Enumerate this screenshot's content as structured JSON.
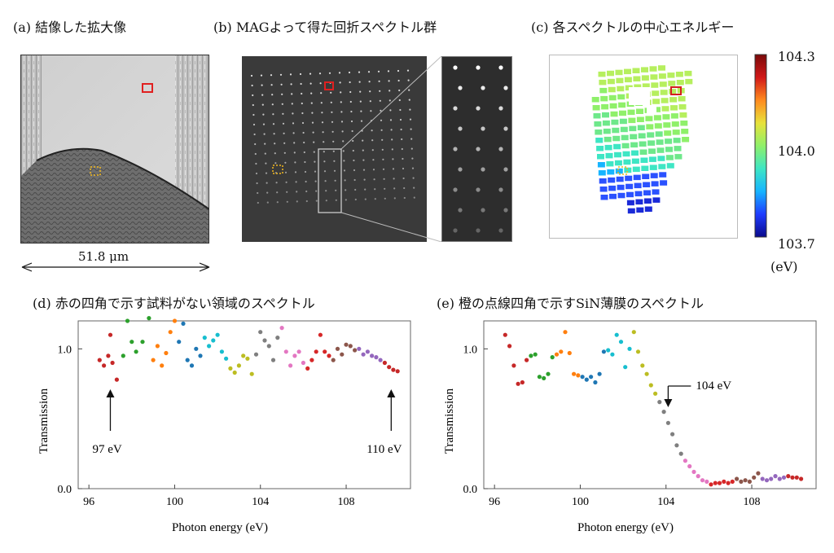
{
  "panels": {
    "a": {
      "label": "(a)  結像した拡大像",
      "scalebar": "51.8 μm"
    },
    "b": {
      "label": "(b)  MAGよって得た回折スペクトル群"
    },
    "c": {
      "label": "(c)  各スペクトルの中心エネルギー",
      "colorbar": {
        "max": "104.3",
        "mid": "104.0",
        "min": "103.7",
        "unit": "(eV)",
        "colors": [
          "#0a0a8c",
          "#1f3cff",
          "#16b4ff",
          "#3ee6c4",
          "#8ff06a",
          "#e8e23a",
          "#ff8a1e",
          "#d11818",
          "#7a0a0a"
        ]
      }
    },
    "d": {
      "label": "(d) 赤の四角で示す試料がない領域のスペクトル",
      "annotations": [
        "97 eV",
        "110 eV"
      ]
    },
    "e": {
      "label": "(e) 橙の点線四角で示すSiN薄膜のスペクトル",
      "annotations": [
        "104 eV"
      ]
    }
  },
  "chart_data": [
    {
      "type": "scatter",
      "title": "",
      "xlabel": "Photon energy (eV)",
      "ylabel": "Transmission",
      "xlim": [
        95.5,
        111
      ],
      "ylim": [
        0,
        1.2
      ],
      "xticks": [
        "96",
        "100",
        "104",
        "108"
      ],
      "yticks": [
        "0.0",
        "1.0"
      ],
      "x": [
        96.5,
        96.7,
        96.9,
        97.0,
        97.1,
        97.3,
        97.6,
        97.8,
        98.0,
        98.2,
        98.5,
        98.8,
        99.0,
        99.2,
        99.4,
        99.6,
        99.8,
        100.0,
        100.2,
        100.4,
        100.6,
        100.8,
        101.0,
        101.2,
        101.4,
        101.6,
        101.8,
        102.0,
        102.2,
        102.4,
        102.6,
        102.8,
        103.0,
        103.2,
        103.4,
        103.6,
        103.8,
        104.0,
        104.2,
        104.4,
        104.6,
        104.8,
        105.0,
        105.2,
        105.4,
        105.6,
        105.8,
        106.0,
        106.2,
        106.4,
        106.6,
        106.8,
        107.0,
        107.2,
        107.4,
        107.6,
        107.8,
        108.0,
        108.2,
        108.4,
        108.6,
        108.8,
        109.0,
        109.2,
        109.4,
        109.6,
        109.8,
        110.0,
        110.2,
        110.4
      ],
      "y": [
        0.92,
        0.88,
        0.95,
        1.1,
        0.9,
        0.78,
        0.95,
        1.2,
        1.05,
        0.98,
        1.05,
        1.22,
        0.92,
        1.02,
        0.88,
        0.97,
        1.12,
        1.2,
        1.05,
        1.18,
        0.92,
        0.88,
        1.0,
        0.95,
        1.08,
        1.02,
        1.06,
        1.1,
        0.98,
        0.93,
        0.86,
        0.83,
        0.88,
        0.95,
        0.93,
        0.82,
        0.96,
        1.12,
        1.06,
        1.02,
        0.92,
        1.08,
        1.15,
        0.98,
        0.88,
        0.95,
        0.98,
        0.9,
        0.86,
        0.92,
        0.98,
        1.1,
        0.98,
        0.95,
        0.92,
        1.0,
        0.96,
        1.03,
        1.02,
        0.99,
        1.0,
        0.96,
        0.98,
        0.95,
        0.94,
        0.92,
        0.9,
        0.87,
        0.85,
        0.84
      ]
    },
    {
      "type": "scatter",
      "title": "",
      "xlabel": "Photon energy (eV)",
      "ylabel": "Transmission",
      "xlim": [
        95.5,
        111
      ],
      "ylim": [
        0,
        1.2
      ],
      "xticks": [
        "96",
        "100",
        "104",
        "108"
      ],
      "yticks": [
        "0.0",
        "1.0"
      ],
      "x": [
        96.5,
        96.7,
        96.9,
        97.1,
        97.3,
        97.5,
        97.7,
        97.9,
        98.1,
        98.3,
        98.5,
        98.7,
        98.9,
        99.1,
        99.3,
        99.5,
        99.7,
        99.9,
        100.1,
        100.3,
        100.5,
        100.7,
        100.9,
        101.1,
        101.3,
        101.5,
        101.7,
        101.9,
        102.1,
        102.3,
        102.5,
        102.7,
        102.9,
        103.1,
        103.3,
        103.5,
        103.7,
        103.9,
        104.1,
        104.3,
        104.5,
        104.7,
        104.9,
        105.1,
        105.3,
        105.5,
        105.7,
        105.9,
        106.1,
        106.3,
        106.5,
        106.7,
        106.9,
        107.1,
        107.3,
        107.5,
        107.7,
        107.9,
        108.1,
        108.3,
        108.5,
        108.7,
        108.9,
        109.1,
        109.3,
        109.5,
        109.7,
        109.9,
        110.1,
        110.3
      ],
      "y": [
        1.1,
        1.02,
        0.88,
        0.75,
        0.76,
        0.92,
        0.95,
        0.96,
        0.8,
        0.79,
        0.82,
        0.94,
        0.96,
        0.98,
        1.12,
        0.97,
        0.82,
        0.81,
        0.8,
        0.78,
        0.8,
        0.76,
        0.82,
        0.98,
        0.99,
        0.96,
        1.1,
        1.05,
        0.87,
        1.0,
        1.12,
        0.98,
        0.88,
        0.82,
        0.74,
        0.68,
        0.62,
        0.55,
        0.47,
        0.39,
        0.31,
        0.25,
        0.2,
        0.16,
        0.12,
        0.09,
        0.06,
        0.05,
        0.03,
        0.04,
        0.04,
        0.05,
        0.04,
        0.05,
        0.07,
        0.05,
        0.06,
        0.05,
        0.08,
        0.11,
        0.07,
        0.06,
        0.07,
        0.09,
        0.07,
        0.08,
        0.09,
        0.08,
        0.08,
        0.07
      ]
    }
  ],
  "series_palette": [
    "#c62828",
    "#2ca02c",
    "#ff7f0e",
    "#1f77b4",
    "#17becf",
    "#bcbd22",
    "#7f7f7f",
    "#e377c2",
    "#d62728",
    "#8c564b",
    "#9467bd"
  ]
}
